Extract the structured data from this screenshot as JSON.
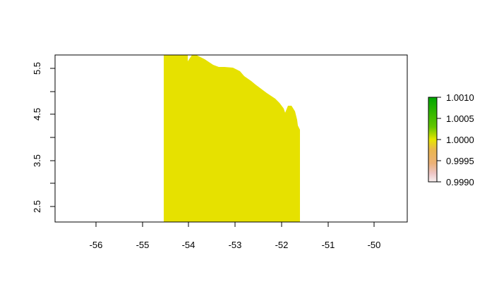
{
  "map": {
    "x_ticks": [
      "-56",
      "-55",
      "-54",
      "-53",
      "-52",
      "-51",
      "-50"
    ],
    "y_ticks": [
      "2.5",
      "3.5",
      "4.5",
      "5.5"
    ],
    "raster_fill_color": "#E6E100",
    "raster_value": 1.0
  },
  "legend": {
    "ticks": [
      "1.0010",
      "1.0005",
      "1.0000",
      "0.9995",
      "0.9990"
    ],
    "colors": {
      "top": "#00A600",
      "mid": "#E6E600",
      "bottom": "#F2F2F2"
    }
  }
}
